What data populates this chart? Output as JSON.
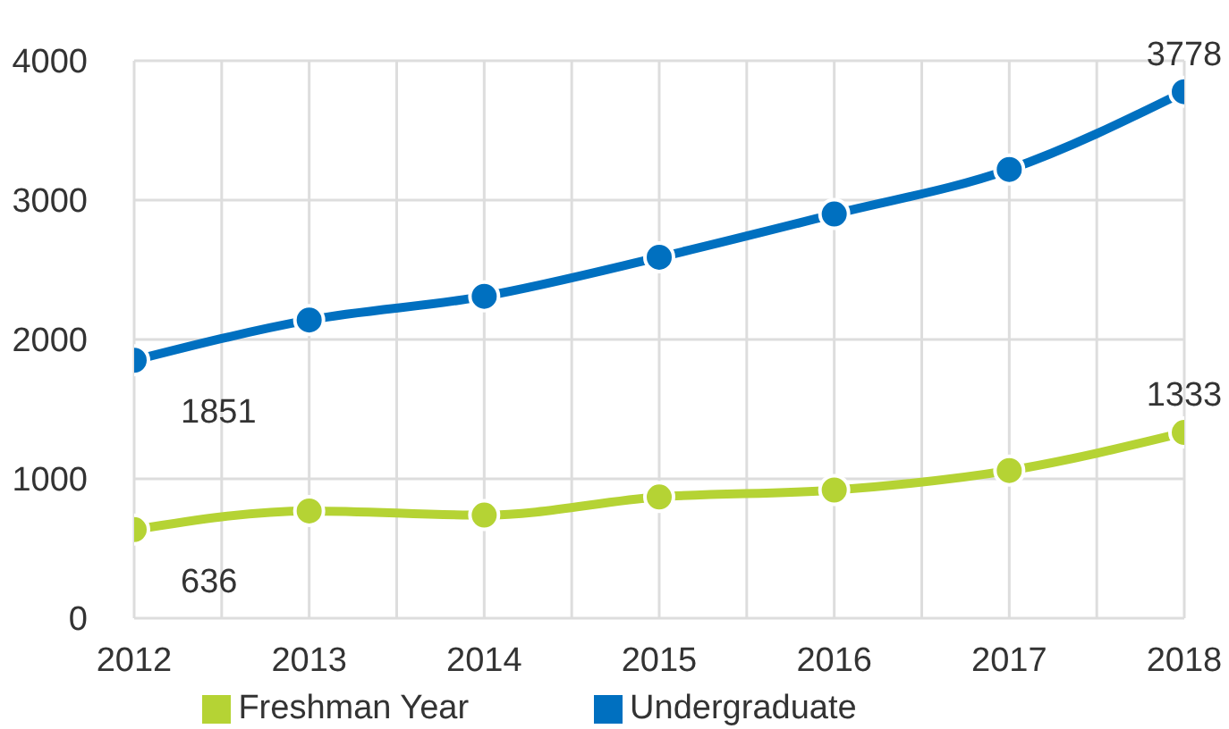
{
  "chart_data": {
    "type": "line",
    "x": [
      2012,
      2013,
      2014,
      2015,
      2016,
      2017,
      2018
    ],
    "xlim": [
      2012,
      2018
    ],
    "xticks": [
      2012,
      2013,
      2014,
      2015,
      2016,
      2017,
      2018
    ],
    "ylim": [
      0,
      4000
    ],
    "yticks": [
      0,
      1000,
      2000,
      3000,
      4000
    ],
    "grid": true,
    "legend": "bottom",
    "marker": "circle",
    "line_style": "solid",
    "series": [
      {
        "name": "Undergraduate",
        "color": "#0070c0",
        "values": [
          1851,
          2140,
          2310,
          2590,
          2900,
          3220,
          3778
        ],
        "value_labels": [
          "1851",
          null,
          null,
          null,
          null,
          null,
          "3778"
        ]
      },
      {
        "name": "Freshman Year",
        "color": "#b5d334",
        "values": [
          636,
          770,
          740,
          870,
          920,
          1060,
          1333
        ],
        "value_labels": [
          "636",
          null,
          null,
          null,
          null,
          null,
          "1333"
        ]
      }
    ]
  }
}
